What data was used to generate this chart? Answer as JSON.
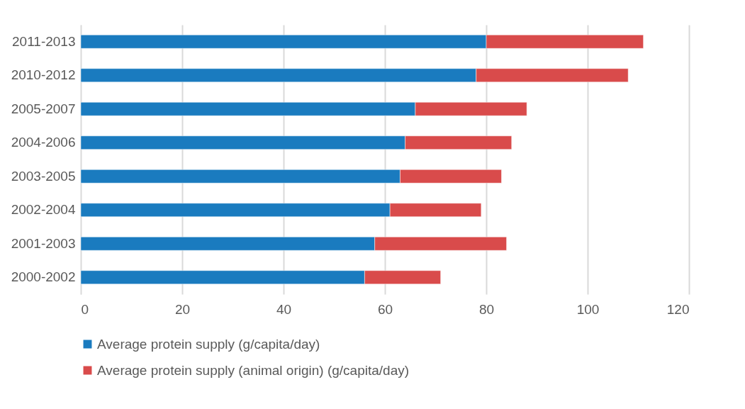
{
  "chart_data": {
    "type": "bar",
    "orientation": "horizontal",
    "stacked": true,
    "categories": [
      "2011-2013",
      "2010-2012",
      "2005-2007",
      "2004-2006",
      "2003-2005",
      "2002-2004",
      "2001-2003",
      "2000-2002"
    ],
    "series": [
      {
        "name": "Average protein supply (g/capita/day)",
        "color": "#1a7bbf",
        "values": [
          80,
          78,
          66,
          64,
          63,
          61,
          58,
          56
        ]
      },
      {
        "name": "Average protein supply (animal origin)  (g/capita/day)",
        "color": "#d94b4b",
        "values": [
          31,
          30,
          22,
          21,
          20,
          18,
          26,
          15
        ]
      }
    ],
    "xlim": [
      0,
      120
    ],
    "xticks": [
      0,
      20,
      40,
      60,
      80,
      100,
      120
    ],
    "grid": "x",
    "legend": "bottom"
  }
}
